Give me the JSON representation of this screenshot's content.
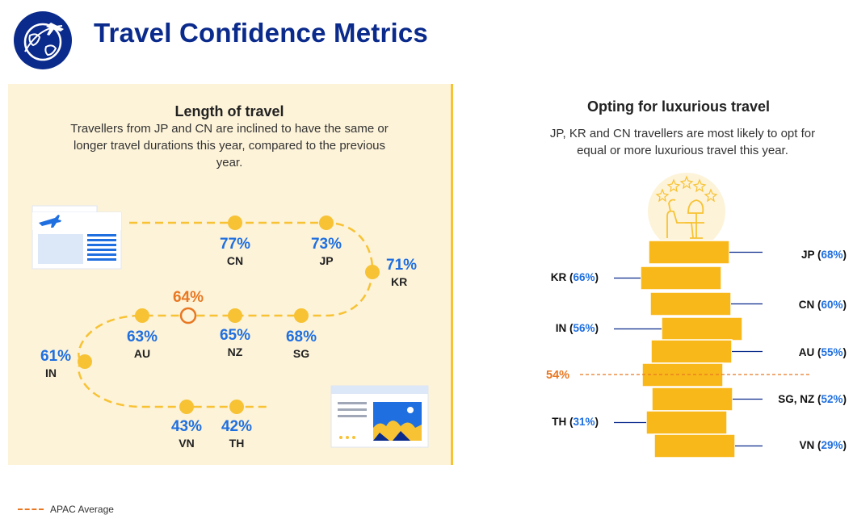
{
  "header": {
    "title": "Travel Confidence Metrics",
    "logo_icon": "globe-airplane-icon"
  },
  "colors": {
    "navy": "#0a2a8c",
    "blue_value": "#1f6fe0",
    "dot": "#f7c234",
    "bar": "#f9b81a",
    "average": "#e87722",
    "panel_bg": "#fdf3d9"
  },
  "left_panel": {
    "title": "Length of travel",
    "subtitle_lines": [
      "Travellers from JP and CN are inclined to have the same or",
      "longer travel durations this year, compared to the previous",
      "year."
    ]
  },
  "right_panel": {
    "title": "Opting for luxurious travel",
    "subtitle_lines": [
      "JP, KR and CN travellers are most likely to opt for",
      "equal or more luxurious travel this year."
    ]
  },
  "legend": {
    "label": "APAC Average"
  },
  "chart_data": [
    {
      "type": "scatter",
      "title": "Length of travel",
      "series": [
        {
          "points": [
            {
              "country": "CN",
              "value": 77,
              "label": "77%"
            },
            {
              "country": "JP",
              "value": 73,
              "label": "73%"
            },
            {
              "country": "KR",
              "value": 71,
              "label": "71%"
            },
            {
              "country": "SG",
              "value": 68,
              "label": "68%"
            },
            {
              "country": "NZ",
              "value": 65,
              "label": "65%"
            },
            {
              "country": "AU",
              "value": 63,
              "label": "63%"
            },
            {
              "country": "IN",
              "value": 61,
              "label": "61%"
            },
            {
              "country": "VN",
              "value": 43,
              "label": "43%"
            },
            {
              "country": "TH",
              "value": 42,
              "label": "42%"
            }
          ]
        }
      ],
      "average": {
        "value": 64,
        "label": "64%"
      }
    },
    {
      "type": "bar",
      "title": "Opting for luxurious travel",
      "categories": [
        "JP",
        "KR",
        "CN",
        "IN",
        "AU",
        "SG, NZ",
        "TH",
        "VN"
      ],
      "values": [
        68,
        66,
        60,
        56,
        55,
        52,
        31,
        29
      ],
      "labels": [
        "68%",
        "66%",
        "60%",
        "56%",
        "55%",
        "52%",
        "31%",
        "29%"
      ],
      "average": {
        "value": 54,
        "label": "54%"
      }
    }
  ]
}
